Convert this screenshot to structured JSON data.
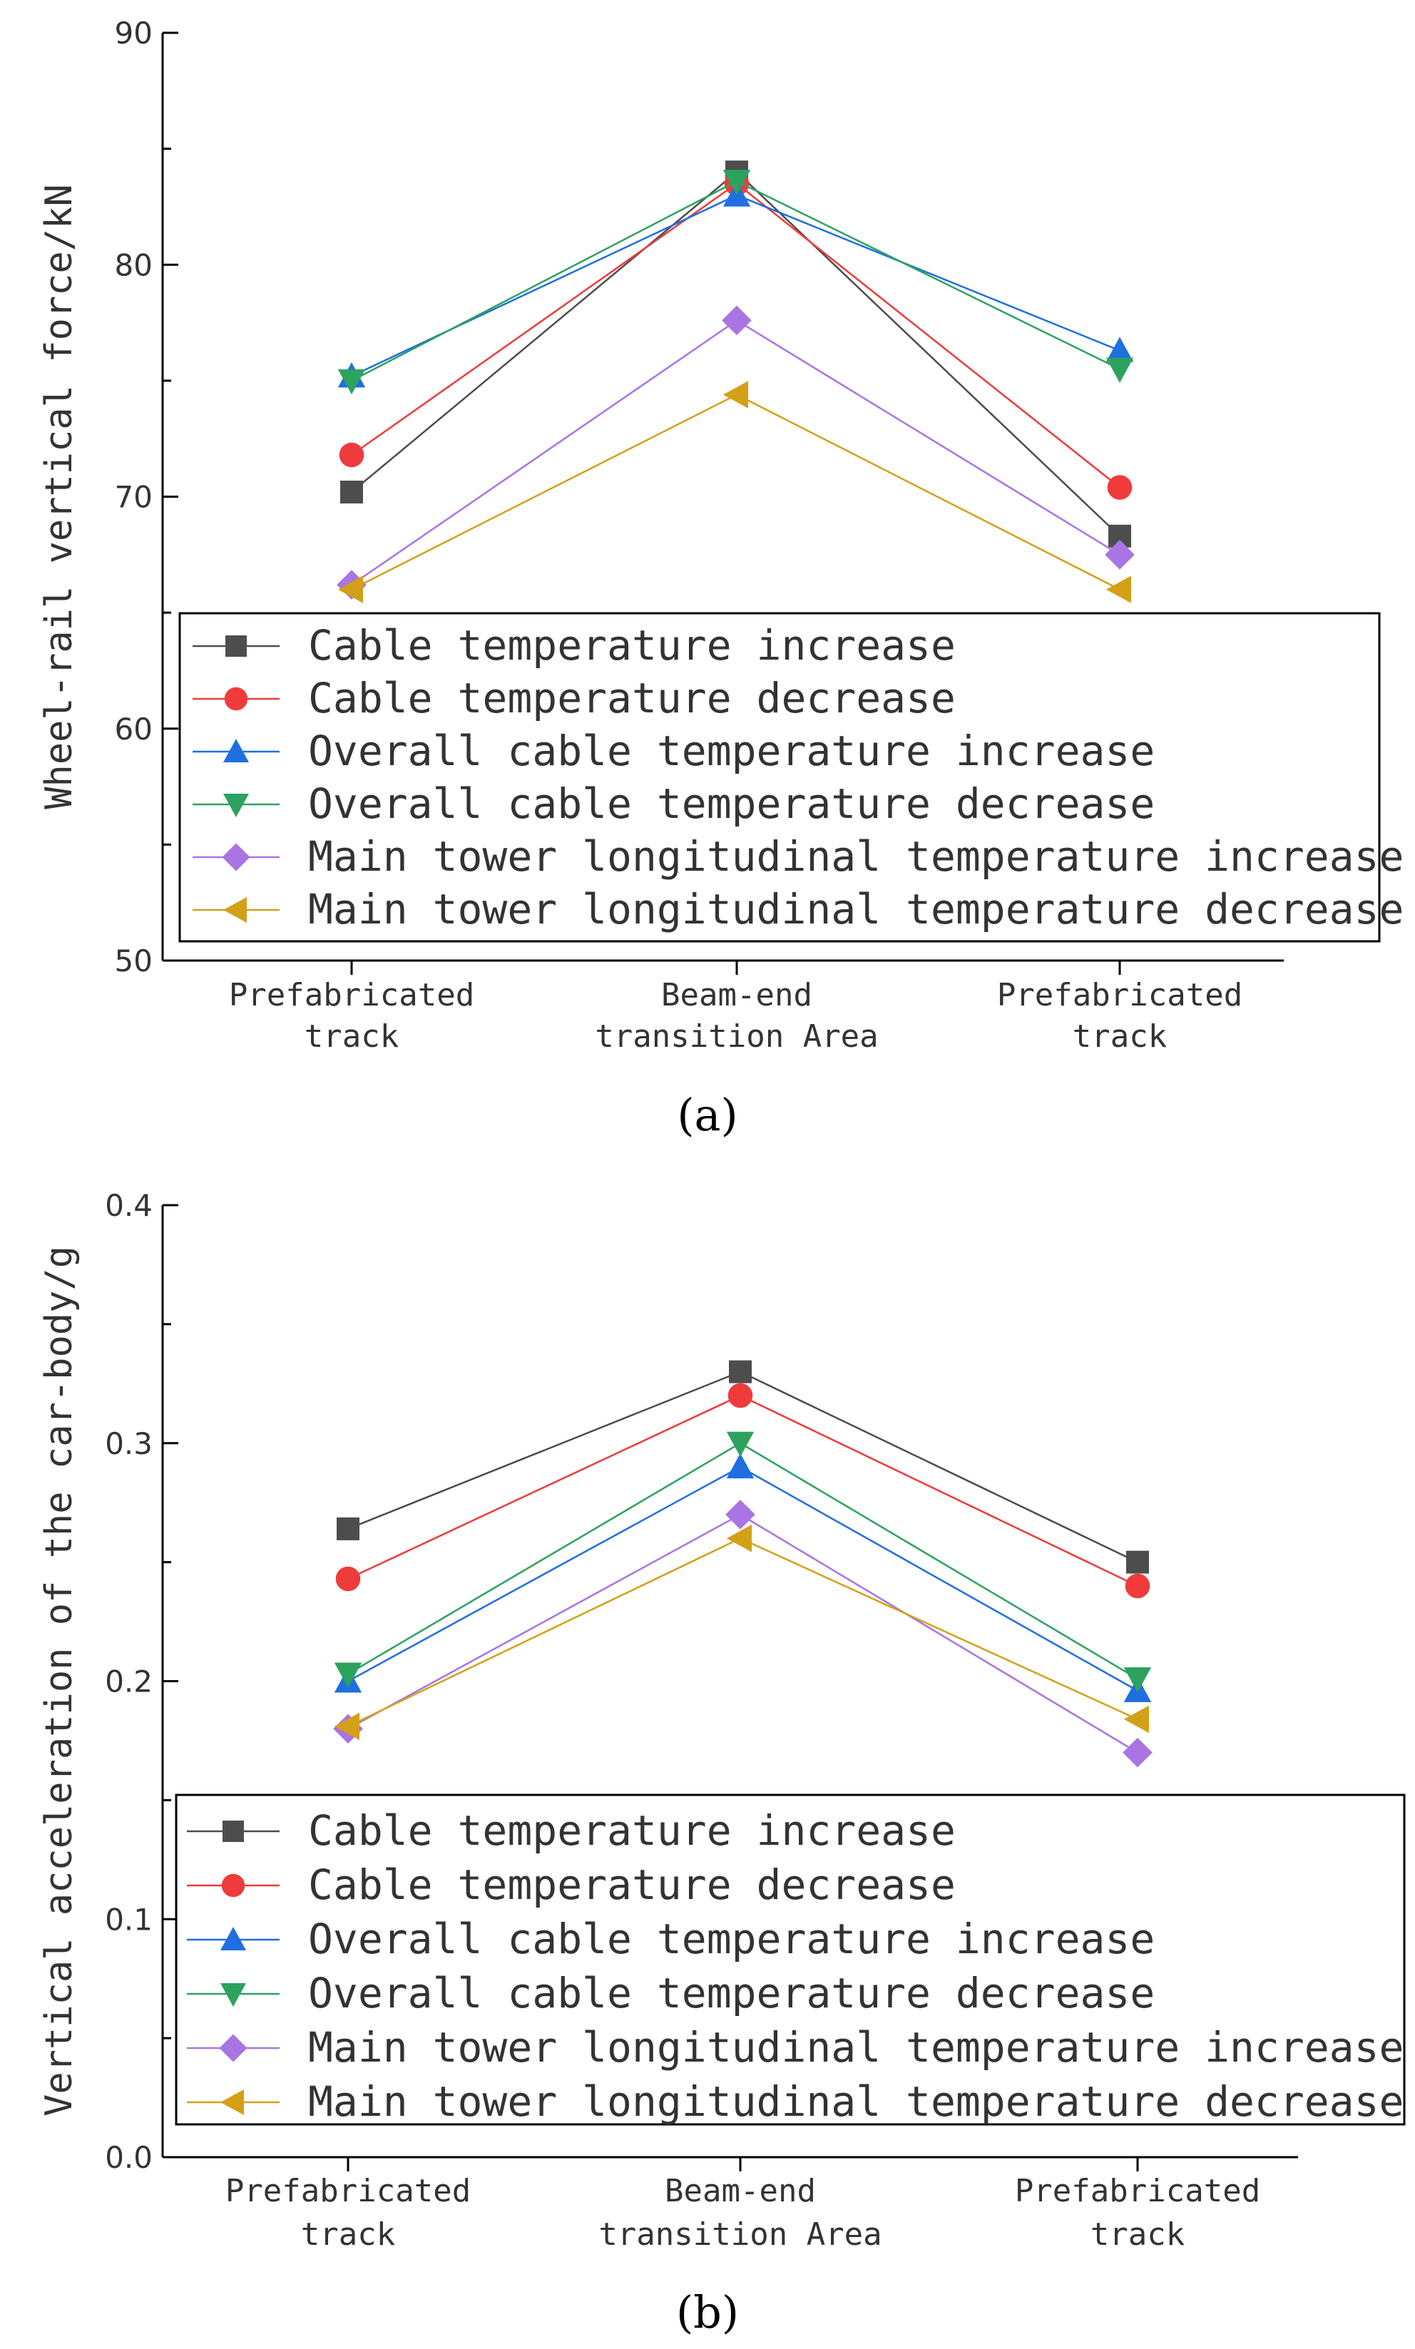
{
  "chart_data": [
    {
      "type": "line",
      "panel_label": "(a)",
      "ylabel": "Wheel-rail vertical force/kN",
      "xlabel": "",
      "categories": [
        [
          "Prefabricated",
          "track"
        ],
        [
          "Beam-end",
          "transition Area"
        ],
        [
          "Prefabricated",
          "track"
        ]
      ],
      "ylim": [
        50,
        90
      ],
      "yticks": [
        50,
        60,
        70,
        80,
        90
      ],
      "ytick_labels": [
        "50",
        "60",
        "70",
        "80",
        "90"
      ],
      "legend_position": "bottom-right",
      "series": [
        {
          "name": "Cable temperature increase",
          "color": "#4d4d4d",
          "marker": "square",
          "values": [
            70.2,
            84.0,
            68.3
          ]
        },
        {
          "name": "Cable temperature decrease",
          "color": "#ef3b3b",
          "marker": "circle",
          "values": [
            71.8,
            83.5,
            70.4
          ]
        },
        {
          "name": "Overall cable temperature increase",
          "color": "#1f6fe0",
          "marker": "triangle-up",
          "values": [
            75.2,
            83.0,
            76.3
          ]
        },
        {
          "name": "Overall cable temperature decrease",
          "color": "#2ca25f",
          "marker": "triangle-down",
          "values": [
            75.0,
            83.6,
            75.5
          ]
        },
        {
          "name": "Main tower longitudinal temperature increase",
          "color": "#a974e4",
          "marker": "diamond",
          "values": [
            66.2,
            77.6,
            67.5
          ]
        },
        {
          "name": "Main tower longitudinal temperature decrease",
          "color": "#d4a017",
          "marker": "triangle-left",
          "values": [
            66.0,
            74.4,
            66.0
          ]
        }
      ]
    },
    {
      "type": "line",
      "panel_label": "(b)",
      "ylabel": "Vertical acceleration of the car-body/g",
      "xlabel": "",
      "categories": [
        [
          "Prefabricated",
          "track"
        ],
        [
          "Beam-end",
          "transition Area"
        ],
        [
          "Prefabricated",
          "track"
        ]
      ],
      "ylim": [
        0.0,
        0.4
      ],
      "yticks": [
        0.0,
        0.1,
        0.2,
        0.3,
        0.4
      ],
      "ytick_labels": [
        "0.0",
        "0.1",
        "0.2",
        "0.3",
        "0.4"
      ],
      "legend_position": "bottom-right",
      "series": [
        {
          "name": "Cable temperature increase",
          "color": "#4d4d4d",
          "marker": "square",
          "values": [
            0.264,
            0.33,
            0.25
          ]
        },
        {
          "name": "Cable temperature decrease",
          "color": "#ef3b3b",
          "marker": "circle",
          "values": [
            0.243,
            0.32,
            0.24
          ]
        },
        {
          "name": "Overall cable temperature increase",
          "color": "#1f6fe0",
          "marker": "triangle-up",
          "values": [
            0.2,
            0.29,
            0.196
          ]
        },
        {
          "name": "Overall cable temperature decrease",
          "color": "#2ca25f",
          "marker": "triangle-down",
          "values": [
            0.203,
            0.3,
            0.201
          ]
        },
        {
          "name": "Main tower longitudinal temperature increase",
          "color": "#a974e4",
          "marker": "diamond",
          "values": [
            0.18,
            0.27,
            0.17
          ]
        },
        {
          "name": "Main tower longitudinal temperature decrease",
          "color": "#d4a017",
          "marker": "triangle-left",
          "values": [
            0.181,
            0.26,
            0.184
          ]
        }
      ]
    }
  ]
}
